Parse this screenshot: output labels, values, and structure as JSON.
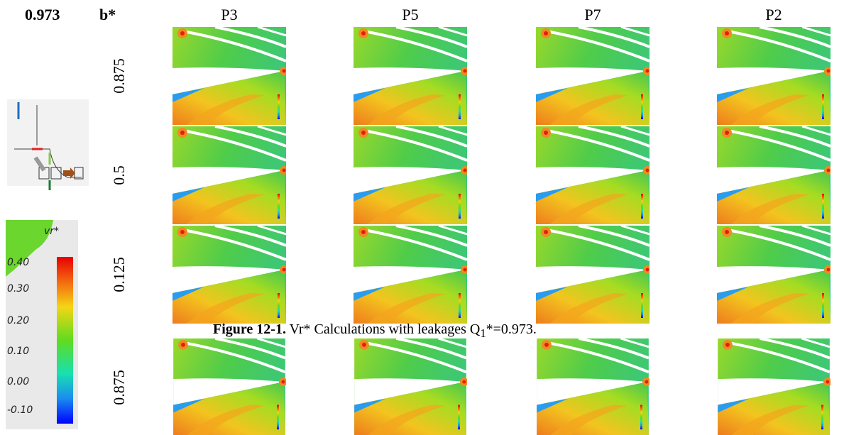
{
  "header": {
    "q_value": "0.973",
    "row_axis": "b*"
  },
  "columns": [
    "P3",
    "P5",
    "P7",
    "P2"
  ],
  "rows": [
    "0.875",
    "0.5",
    "0.125",
    "0.875"
  ],
  "legend": {
    "title": "vr*",
    "ticks": [
      "0.40",
      "0.30",
      "0.20",
      "0.10",
      "0.00",
      "-0.10"
    ]
  },
  "caption": {
    "label": "Figure 12-1.",
    "text": "Vr* Calculations with leakages Q",
    "subscript": "1",
    "text_end": "*=0.973."
  }
}
